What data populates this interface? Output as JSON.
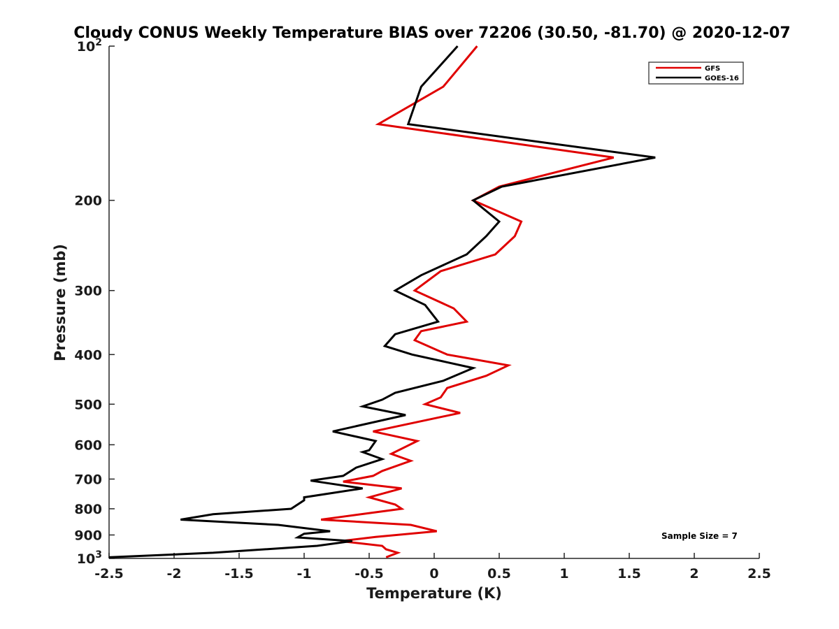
{
  "chart_data": {
    "type": "line",
    "title": "Cloudy CONUS Weekly Temperature BIAS over 72206 (30.50, -81.70) @ 2020-12-07",
    "xlabel": "Temperature (K)",
    "ylabel": "Pressure (mb)",
    "xlim": [
      -2.5,
      2.5
    ],
    "ylim": [
      100,
      1000
    ],
    "y_scale": "log",
    "y_reversed": true,
    "grid": false,
    "legend_position": "top-right",
    "x_ticks": [
      "-2.5",
      "-2",
      "-1.5",
      "-1",
      "-0.5",
      "0",
      "0.5",
      "1",
      "1.5",
      "2",
      "2.5"
    ],
    "x_tick_values": [
      -2.5,
      -2,
      -1.5,
      -1,
      -0.5,
      0,
      0.5,
      1,
      1.5,
      2,
      2.5
    ],
    "y_ticks": [
      {
        "value": 100,
        "base": "10",
        "exp": "2"
      },
      {
        "value": 200,
        "base": "200",
        "exp": ""
      },
      {
        "value": 300,
        "base": "300",
        "exp": ""
      },
      {
        "value": 400,
        "base": "400",
        "exp": ""
      },
      {
        "value": 500,
        "base": "500",
        "exp": ""
      },
      {
        "value": 600,
        "base": "600",
        "exp": ""
      },
      {
        "value": 700,
        "base": "700",
        "exp": ""
      },
      {
        "value": 800,
        "base": "800",
        "exp": ""
      },
      {
        "value": 900,
        "base": "900",
        "exp": ""
      },
      {
        "value": 1000,
        "base": "10",
        "exp": "3"
      }
    ],
    "annotation": "Sample Size = 7",
    "series": [
      {
        "name": "GFS",
        "color": "#e00000",
        "points": [
          [
            0.33,
            100
          ],
          [
            0.07,
            120
          ],
          [
            -0.43,
            142
          ],
          [
            1.38,
            165
          ],
          [
            0.5,
            188
          ],
          [
            0.3,
            200
          ],
          [
            0.67,
            220
          ],
          [
            0.62,
            235
          ],
          [
            0.47,
            255
          ],
          [
            0.05,
            275
          ],
          [
            -0.15,
            300
          ],
          [
            0.15,
            325
          ],
          [
            0.25,
            345
          ],
          [
            -0.1,
            360
          ],
          [
            -0.15,
            375
          ],
          [
            0.1,
            400
          ],
          [
            0.57,
            420
          ],
          [
            0.4,
            440
          ],
          [
            0.1,
            465
          ],
          [
            0.05,
            485
          ],
          [
            -0.07,
            500
          ],
          [
            0.2,
            520
          ],
          [
            -0.47,
            565
          ],
          [
            -0.13,
            590
          ],
          [
            -0.33,
            625
          ],
          [
            -0.18,
            645
          ],
          [
            -0.4,
            675
          ],
          [
            -0.47,
            690
          ],
          [
            -0.7,
            708
          ],
          [
            -0.25,
            730
          ],
          [
            -0.5,
            760
          ],
          [
            -0.3,
            785
          ],
          [
            -0.25,
            800
          ],
          [
            -0.72,
            830
          ],
          [
            -0.87,
            840
          ],
          [
            -0.18,
            860
          ],
          [
            0.02,
            885
          ],
          [
            -0.45,
            908
          ],
          [
            -0.72,
            925
          ],
          [
            -0.4,
            945
          ],
          [
            -0.37,
            960
          ],
          [
            -0.28,
            975
          ],
          [
            -0.37,
            995
          ]
        ]
      },
      {
        "name": "GOES-16",
        "color": "#000000",
        "points": [
          [
            0.18,
            100
          ],
          [
            -0.1,
            120
          ],
          [
            -0.2,
            142
          ],
          [
            1.7,
            165
          ],
          [
            0.52,
            188
          ],
          [
            0.3,
            200
          ],
          [
            0.5,
            220
          ],
          [
            0.4,
            235
          ],
          [
            0.25,
            255
          ],
          [
            -0.1,
            280
          ],
          [
            -0.3,
            300
          ],
          [
            -0.07,
            320
          ],
          [
            0.03,
            345
          ],
          [
            -0.3,
            365
          ],
          [
            -0.38,
            385
          ],
          [
            -0.17,
            400
          ],
          [
            0.3,
            425
          ],
          [
            0.07,
            450
          ],
          [
            -0.3,
            475
          ],
          [
            -0.4,
            490
          ],
          [
            -0.55,
            505
          ],
          [
            -0.22,
            525
          ],
          [
            -0.78,
            565
          ],
          [
            -0.45,
            590
          ],
          [
            -0.5,
            615
          ],
          [
            -0.55,
            620
          ],
          [
            -0.4,
            640
          ],
          [
            -0.6,
            665
          ],
          [
            -0.7,
            690
          ],
          [
            -0.95,
            705
          ],
          [
            -0.55,
            730
          ],
          [
            -1.0,
            760
          ],
          [
            -1.0,
            770
          ],
          [
            -1.1,
            800
          ],
          [
            -1.7,
            820
          ],
          [
            -1.95,
            840
          ],
          [
            -1.2,
            860
          ],
          [
            -0.8,
            885
          ],
          [
            -1.0,
            895
          ],
          [
            -1.05,
            910
          ],
          [
            -0.63,
            925
          ],
          [
            -0.9,
            945
          ],
          [
            -1.7,
            975
          ],
          [
            -2.5,
            995
          ]
        ]
      }
    ]
  }
}
